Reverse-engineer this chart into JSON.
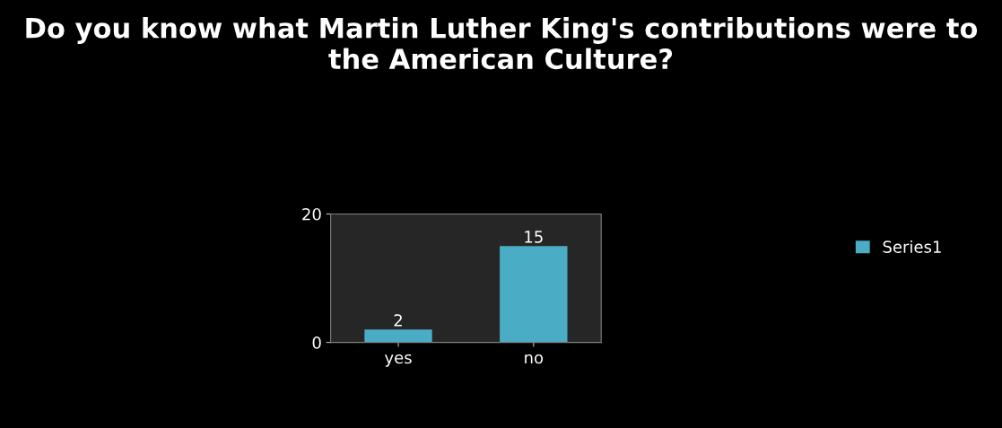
{
  "chart_data": {
    "type": "bar",
    "title": "Do you know what Martin Luther King's contributions were to the American Culture?",
    "categories": [
      "yes",
      "no"
    ],
    "series": [
      {
        "name": "Series1",
        "color": "#4bacc6",
        "values": [
          2,
          15
        ]
      }
    ],
    "ylim": [
      0,
      20
    ],
    "yticks": [
      0,
      20
    ],
    "data_labels": true,
    "legend": "right",
    "grid": false
  }
}
